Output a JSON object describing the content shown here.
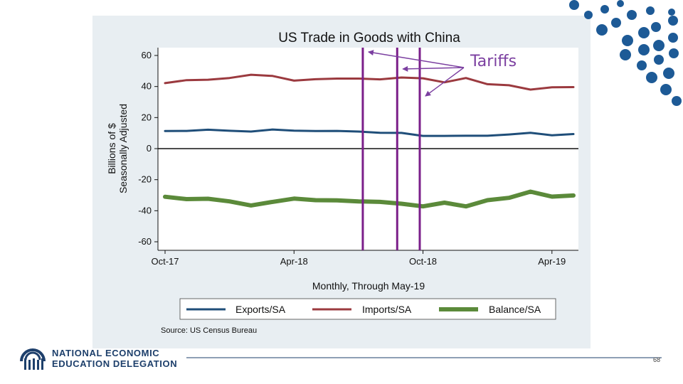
{
  "slide": {
    "page_number": "68",
    "logo": {
      "line1": "NATIONAL ECONOMIC",
      "line2": "EDUCATION DELEGATION"
    },
    "annotation": "Tariffs"
  },
  "colors": {
    "panel_bg": "#e8eef2",
    "exports": "#1f4e79",
    "imports": "#9b3a3f",
    "balance": "#5b8a3a",
    "tariff_lines": "#7b1f8a",
    "annotation": "#7b3fa0",
    "dots": "#1d5a96",
    "brand": "#1d3f6b"
  },
  "chart_data": {
    "type": "line",
    "title": "US Trade in Goods with China",
    "xlabel": "Monthly, Through May-19",
    "ylabel_line1": "Billions of $",
    "ylabel_line2": "Seasonally Adjusted",
    "ylim": [
      -60,
      60
    ],
    "yticks": [
      "60",
      "40",
      "20",
      "0",
      "-20",
      "-40",
      "-60"
    ],
    "xticks": [
      "Oct-17",
      "Apr-18",
      "Oct-18",
      "Apr-19"
    ],
    "x_range_months": [
      0,
      19
    ],
    "xtick_positions": [
      0,
      6,
      12,
      18
    ],
    "x": [
      0,
      1,
      2,
      3,
      4,
      5,
      6,
      7,
      8,
      9,
      10,
      11,
      12,
      13,
      14,
      15,
      16,
      17,
      18,
      19
    ],
    "series": [
      {
        "name": "Exports/SA",
        "values": [
          11.3,
          11.4,
          12.2,
          11.5,
          11.0,
          12.3,
          11.6,
          11.3,
          11.4,
          11.0,
          10.2,
          10.1,
          8.2,
          8.2,
          8.3,
          8.3,
          9.1,
          10.2,
          8.6,
          9.4
        ]
      },
      {
        "name": "Imports/SA",
        "values": [
          42.2,
          44.1,
          44.4,
          45.5,
          47.6,
          46.8,
          43.8,
          44.7,
          45.1,
          45.1,
          44.6,
          45.8,
          45.3,
          42.7,
          45.5,
          41.5,
          40.8,
          38.0,
          39.5,
          39.6
        ]
      },
      {
        "name": "Balance/SA",
        "values": [
          -31.0,
          -32.5,
          -32.3,
          -34.0,
          -36.6,
          -34.3,
          -32.2,
          -33.2,
          -33.3,
          -34.0,
          -34.3,
          -35.5,
          -37.2,
          -34.8,
          -37.2,
          -33.2,
          -31.7,
          -27.7,
          -30.9,
          -30.2
        ]
      }
    ],
    "vertical_lines_x": [
      9.2,
      10.8,
      11.85
    ],
    "legend": [
      "Exports/SA",
      "Imports/SA",
      "Balance/SA"
    ],
    "legend_position": "bottom",
    "source": "Source: US Census Bureau"
  }
}
